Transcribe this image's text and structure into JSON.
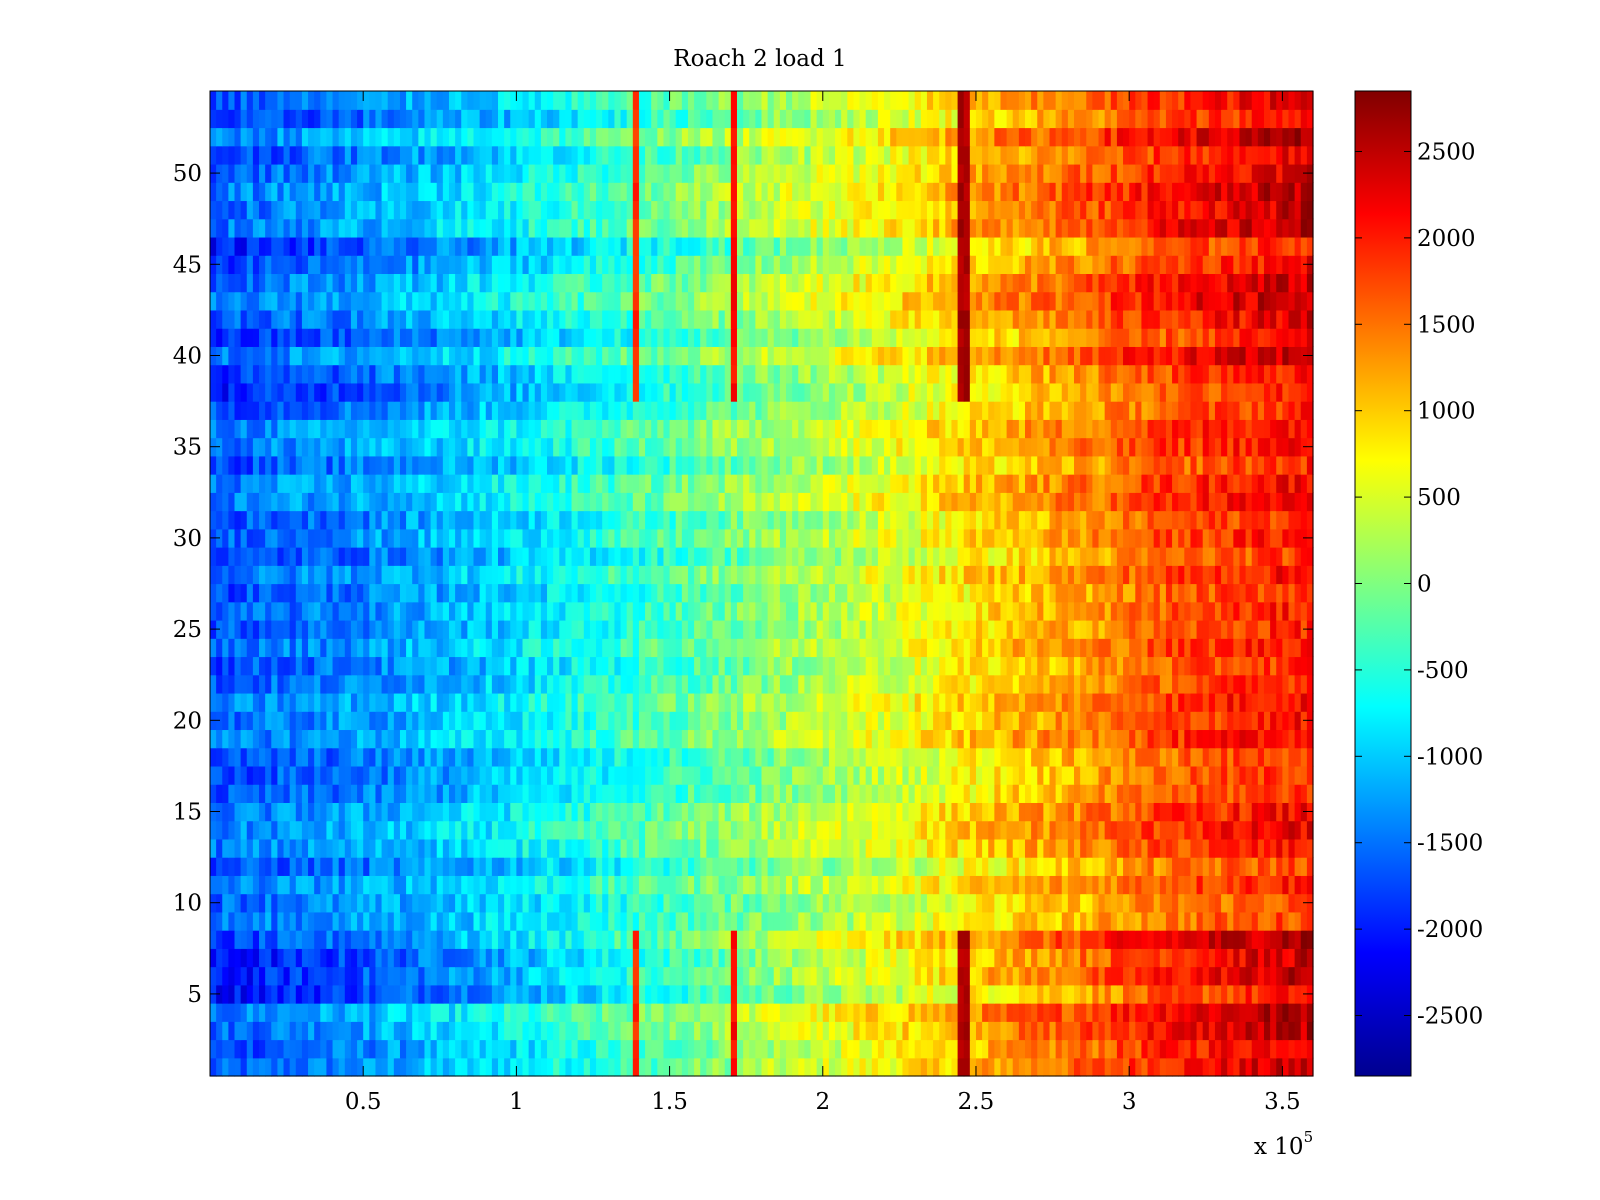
{
  "chart_data": {
    "type": "heatmap",
    "title": "Roach 2 load 1",
    "colormap": "jet",
    "x_multiplier_label": "x 10",
    "x_multiplier_exponent": "5",
    "xlim": [
      0,
      3.6
    ],
    "ylim": [
      0.5,
      54.5
    ],
    "x_ticks": [
      {
        "value": 0.5,
        "label": "0.5"
      },
      {
        "value": 1,
        "label": "1"
      },
      {
        "value": 1.5,
        "label": "1.5"
      },
      {
        "value": 2,
        "label": "2"
      },
      {
        "value": 2.5,
        "label": "2.5"
      },
      {
        "value": 3,
        "label": "3"
      },
      {
        "value": 3.5,
        "label": "3.5"
      }
    ],
    "y_ticks": [
      {
        "value": 5,
        "label": "5"
      },
      {
        "value": 10,
        "label": "10"
      },
      {
        "value": 15,
        "label": "15"
      },
      {
        "value": 20,
        "label": "20"
      },
      {
        "value": 25,
        "label": "25"
      },
      {
        "value": 30,
        "label": "30"
      },
      {
        "value": 35,
        "label": "35"
      },
      {
        "value": 40,
        "label": "40"
      },
      {
        "value": 45,
        "label": "45"
      },
      {
        "value": 50,
        "label": "50"
      }
    ],
    "color_range": [
      -2850,
      2850
    ],
    "colorbar_ticks": [
      {
        "value": 2500,
        "label": "2500"
      },
      {
        "value": 2000,
        "label": "2000"
      },
      {
        "value": 1500,
        "label": "1500"
      },
      {
        "value": 1000,
        "label": "1000"
      },
      {
        "value": 500,
        "label": "500"
      },
      {
        "value": 0,
        "label": "0"
      },
      {
        "value": -500,
        "label": "-500"
      },
      {
        "value": -1000,
        "label": "-1000"
      },
      {
        "value": -1500,
        "label": "-1500"
      },
      {
        "value": -2000,
        "label": "-2000"
      },
      {
        "value": -2500,
        "label": "-2500"
      }
    ],
    "x_profile": [
      {
        "x": 0.0,
        "v": -1700
      },
      {
        "x": 0.5,
        "v": -1600
      },
      {
        "x": 1.0,
        "v": -1150
      },
      {
        "x": 1.35,
        "v": -700
      },
      {
        "x": 1.7,
        "v": -200
      },
      {
        "x": 2.0,
        "v": 150
      },
      {
        "x": 2.3,
        "v": 500
      },
      {
        "x": 2.5,
        "v": 900
      },
      {
        "x": 2.9,
        "v": 1400
      },
      {
        "x": 3.1,
        "v": 1800
      },
      {
        "x": 3.6,
        "v": 2100
      }
    ],
    "row_groups": [
      {
        "rows": [
          1,
          5
        ],
        "left": -1900,
        "right": 2600,
        "pattern": "banded"
      },
      {
        "rows": [
          6,
          8
        ],
        "left": -2600,
        "right": 2850,
        "pattern": "banded"
      },
      {
        "rows": [
          9,
          10
        ],
        "left": -1300,
        "right": 1500,
        "pattern": "smooth"
      },
      {
        "rows": [
          11,
          13
        ],
        "left": -1500,
        "right": 1800,
        "pattern": "smooth"
      },
      {
        "rows": [
          14,
          37
        ],
        "left": -1600,
        "right": 2000,
        "pattern": "smooth"
      },
      {
        "rows": [
          38,
          54
        ],
        "left": -1800,
        "right": 2500,
        "pattern": "banded"
      }
    ],
    "vertical_stripes": [
      {
        "x": 1.39,
        "v": 1900
      },
      {
        "x": 1.71,
        "v": 2100
      },
      {
        "x": 2.46,
        "v": 2600
      }
    ]
  }
}
